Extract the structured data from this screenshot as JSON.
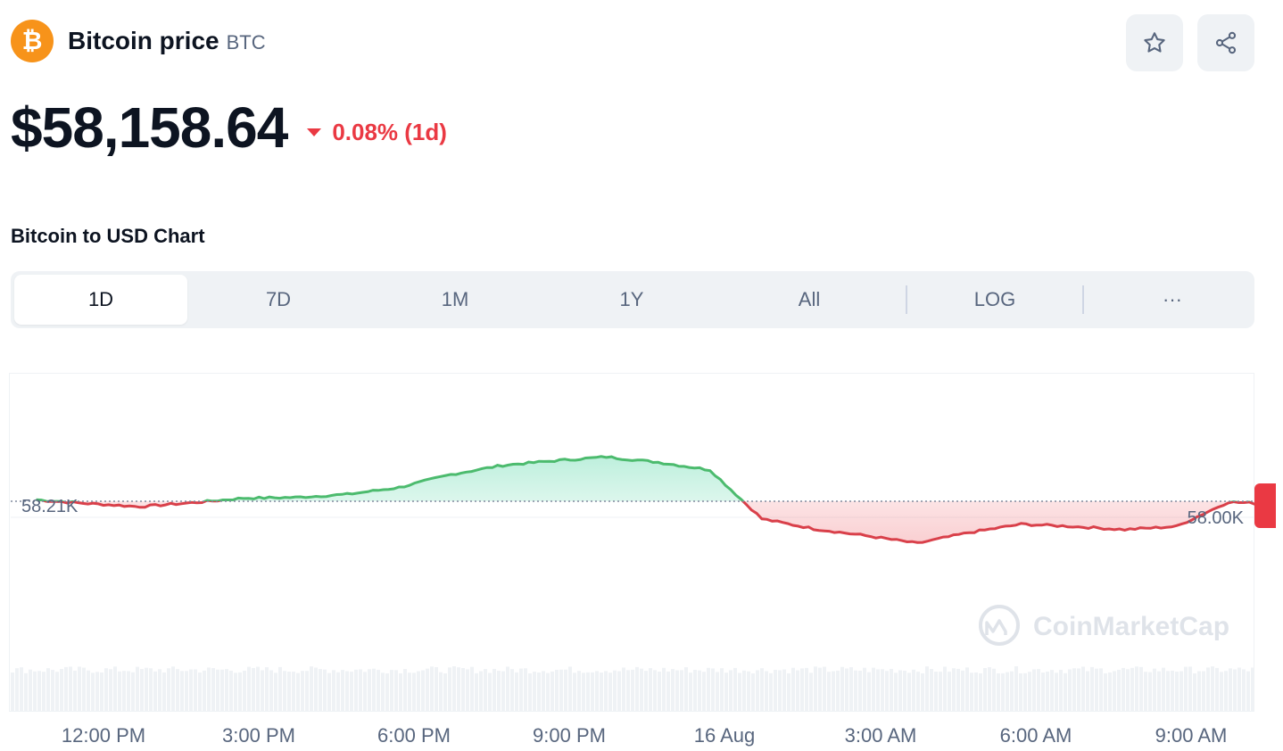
{
  "header": {
    "coin_name": "Bitcoin price",
    "coin_symbol": "BTC",
    "logo_glyph": "₿",
    "logo_color": "#f7931a"
  },
  "price": {
    "value": "$58,158.64",
    "change": "0.08% (1d)",
    "change_color": "#ea3943"
  },
  "section_title": "Bitcoin to USD Chart",
  "tabs": [
    {
      "label": "1D",
      "active": true
    },
    {
      "label": "7D",
      "active": false
    },
    {
      "label": "1M",
      "active": false
    },
    {
      "label": "1Y",
      "active": false
    },
    {
      "label": "All",
      "active": false
    },
    {
      "label": "LOG",
      "active": false
    },
    {
      "label": "···",
      "active": false
    }
  ],
  "chart_data": {
    "type": "area",
    "title": "",
    "xlabel": "",
    "ylabel": "",
    "baseline": 58210,
    "baseline_label": "58.21K",
    "y_tick_label": "58.00K",
    "y_tick_value": 58000,
    "x_tick_labels": [
      "12:00 PM",
      "3:00 PM",
      "6:00 PM",
      "9:00 PM",
      "16 Aug",
      "3:00 AM",
      "6:00 AM",
      "9:00 AM"
    ],
    "x_hours": [
      0,
      1,
      2,
      3,
      4,
      5,
      6,
      7,
      8,
      9,
      10,
      11,
      12,
      13,
      14,
      15,
      16,
      17,
      18,
      19,
      20,
      21,
      22,
      23,
      24
    ],
    "values": [
      58230,
      58180,
      58140,
      58190,
      58250,
      58260,
      58300,
      58390,
      58560,
      58680,
      58740,
      58790,
      58720,
      58620,
      57980,
      57850,
      57760,
      57660,
      57800,
      57910,
      57880,
      57840,
      57880,
      58200,
      58170
    ],
    "x_start_hour": 10.7,
    "colors": {
      "up": "#16c784",
      "up_line": "#4cbb6e",
      "down": "#ea3943",
      "down_line": "#d9404a"
    },
    "watermark": "CoinMarketCap"
  }
}
